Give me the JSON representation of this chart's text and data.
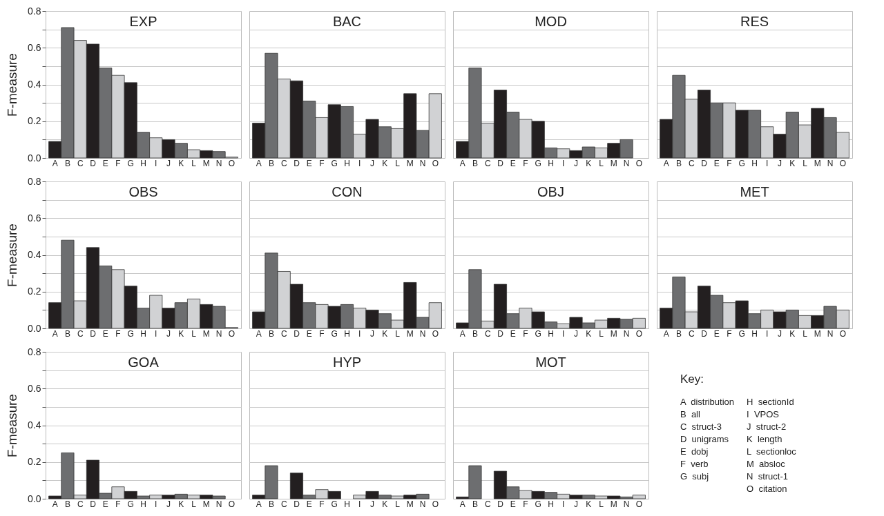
{
  "chart_data": [
    {
      "type": "bar",
      "title": "EXP",
      "ylabel": "F-measure",
      "categories": [
        "A",
        "B",
        "C",
        "D",
        "E",
        "F",
        "G",
        "H",
        "I",
        "J",
        "K",
        "L",
        "M",
        "N",
        "O"
      ],
      "values": [
        0.09,
        0.71,
        0.64,
        0.62,
        0.49,
        0.45,
        0.41,
        0.14,
        0.11,
        0.1,
        0.08,
        0.045,
        0.04,
        0.035,
        0.005
      ],
      "colors": [
        "#231f20",
        "#6d6e70",
        "#d1d2d4",
        "#231f20",
        "#6d6e70",
        "#d1d2d4",
        "#231f20",
        "#6d6e70",
        "#d1d2d4",
        "#231f20",
        "#6d6e70",
        "#d1d2d4",
        "#231f20",
        "#6d6e70",
        "#d1d2d4"
      ],
      "ylim": [
        0,
        0.8
      ],
      "yticks": [
        {
          "value": 0,
          "label": "0.0"
        },
        {
          "value": 0.1,
          "label": null
        },
        {
          "value": 0.2,
          "label": "0.2"
        },
        {
          "value": 0.3,
          "label": null
        },
        {
          "value": 0.4,
          "label": "0.4"
        },
        {
          "value": 0.5,
          "label": null
        },
        {
          "value": 0.6,
          "label": "0.6"
        },
        {
          "value": 0.7,
          "label": null
        },
        {
          "value": 0.8,
          "label": "0.8"
        }
      ],
      "grid": "y"
    },
    {
      "type": "bar",
      "title": "BAC",
      "categories": [
        "A",
        "B",
        "C",
        "D",
        "E",
        "F",
        "G",
        "H",
        "I",
        "J",
        "K",
        "L",
        "M",
        "N",
        "O"
      ],
      "values": [
        0.19,
        0.57,
        0.43,
        0.42,
        0.31,
        0.22,
        0.29,
        0.28,
        0.13,
        0.21,
        0.17,
        0.16,
        0.35,
        0.15,
        0.35
      ],
      "colors": [
        "#231f20",
        "#6d6e70",
        "#d1d2d4",
        "#231f20",
        "#6d6e70",
        "#d1d2d4",
        "#231f20",
        "#6d6e70",
        "#d1d2d4",
        "#231f20",
        "#6d6e70",
        "#d1d2d4",
        "#231f20",
        "#6d6e70",
        "#d1d2d4"
      ],
      "ylim": [
        0,
        0.8
      ],
      "yticks": [
        {
          "value": 0.1,
          "label": null
        },
        {
          "value": 0.2,
          "label": null
        },
        {
          "value": 0.3,
          "label": null
        },
        {
          "value": 0.4,
          "label": null
        },
        {
          "value": 0.5,
          "label": null
        },
        {
          "value": 0.6,
          "label": null
        },
        {
          "value": 0.7,
          "label": null
        }
      ],
      "grid": "y",
      "tick_labels": "x"
    },
    {
      "type": "bar",
      "title": "MOD",
      "categories": [
        "A",
        "B",
        "C",
        "D",
        "E",
        "F",
        "G",
        "H",
        "I",
        "J",
        "K",
        "L",
        "M",
        "N",
        "O"
      ],
      "values": [
        0.09,
        0.49,
        0.19,
        0.37,
        0.25,
        0.21,
        0.2,
        0.055,
        0.05,
        0.04,
        0.06,
        0.055,
        0.08,
        0.1,
        null
      ],
      "colors": [
        "#231f20",
        "#6d6e70",
        "#d1d2d4",
        "#231f20",
        "#6d6e70",
        "#d1d2d4",
        "#231f20",
        "#6d6e70",
        "#d1d2d4",
        "#231f20",
        "#6d6e70",
        "#d1d2d4",
        "#231f20",
        "#6d6e70",
        "#d1d2d4"
      ],
      "ylim": [
        0,
        0.8
      ],
      "yticks": [
        {
          "value": 0.1,
          "label": null
        },
        {
          "value": 0.2,
          "label": null
        },
        {
          "value": 0.3,
          "label": null
        },
        {
          "value": 0.4,
          "label": null
        },
        {
          "value": 0.5,
          "label": null
        },
        {
          "value": 0.6,
          "label": null
        },
        {
          "value": 0.7,
          "label": null
        }
      ],
      "grid": "y",
      "tick_labels": "x"
    },
    {
      "type": "bar",
      "title": "RES",
      "categories": [
        "A",
        "B",
        "C",
        "D",
        "E",
        "F",
        "G",
        "H",
        "I",
        "J",
        "K",
        "L",
        "M",
        "N",
        "O"
      ],
      "values": [
        0.21,
        0.45,
        0.32,
        0.37,
        0.3,
        0.3,
        0.26,
        0.26,
        0.17,
        0.13,
        0.25,
        0.18,
        0.27,
        0.22,
        0.14
      ],
      "colors": [
        "#231f20",
        "#6d6e70",
        "#d1d2d4",
        "#231f20",
        "#6d6e70",
        "#d1d2d4",
        "#231f20",
        "#6d6e70",
        "#d1d2d4",
        "#231f20",
        "#6d6e70",
        "#d1d2d4",
        "#231f20",
        "#6d6e70",
        "#d1d2d4"
      ],
      "ylim": [
        0,
        0.8
      ],
      "yticks": [
        {
          "value": 0.1,
          "label": null
        },
        {
          "value": 0.2,
          "label": null
        },
        {
          "value": 0.3,
          "label": null
        },
        {
          "value": 0.4,
          "label": null
        },
        {
          "value": 0.5,
          "label": null
        },
        {
          "value": 0.6,
          "label": null
        },
        {
          "value": 0.7,
          "label": null
        }
      ],
      "grid": "y",
      "tick_labels": "x"
    },
    {
      "type": "bar",
      "title": "OBS",
      "ylabel": "F-measure",
      "categories": [
        "A",
        "B",
        "C",
        "D",
        "E",
        "F",
        "G",
        "H",
        "I",
        "J",
        "K",
        "L",
        "M",
        "N",
        "O"
      ],
      "values": [
        0.14,
        0.48,
        0.15,
        0.44,
        0.34,
        0.32,
        0.23,
        0.11,
        0.18,
        0.11,
        0.14,
        0.16,
        0.13,
        0.12,
        0.005
      ],
      "colors": [
        "#231f20",
        "#6d6e70",
        "#d1d2d4",
        "#231f20",
        "#6d6e70",
        "#d1d2d4",
        "#231f20",
        "#6d6e70",
        "#d1d2d4",
        "#231f20",
        "#6d6e70",
        "#d1d2d4",
        "#231f20",
        "#6d6e70",
        "#d1d2d4"
      ],
      "ylim": [
        0,
        0.8
      ],
      "yticks": [
        {
          "value": 0,
          "label": "0.0"
        },
        {
          "value": 0.1,
          "label": null
        },
        {
          "value": 0.2,
          "label": "0.2"
        },
        {
          "value": 0.3,
          "label": null
        },
        {
          "value": 0.4,
          "label": "0.4"
        },
        {
          "value": 0.5,
          "label": null
        },
        {
          "value": 0.6,
          "label": "0.6"
        },
        {
          "value": 0.7,
          "label": null
        },
        {
          "value": 0.8,
          "label": "0.8"
        }
      ],
      "grid": "y"
    },
    {
      "type": "bar",
      "title": "CON",
      "categories": [
        "A",
        "B",
        "C",
        "D",
        "E",
        "F",
        "G",
        "H",
        "I",
        "J",
        "K",
        "L",
        "M",
        "N",
        "O"
      ],
      "values": [
        0.09,
        0.41,
        0.31,
        0.24,
        0.14,
        0.13,
        0.12,
        0.13,
        0.11,
        0.1,
        0.08,
        0.045,
        0.25,
        0.06,
        0.14
      ],
      "colors": [
        "#231f20",
        "#6d6e70",
        "#d1d2d4",
        "#231f20",
        "#6d6e70",
        "#d1d2d4",
        "#231f20",
        "#6d6e70",
        "#d1d2d4",
        "#231f20",
        "#6d6e70",
        "#d1d2d4",
        "#231f20",
        "#6d6e70",
        "#d1d2d4"
      ],
      "ylim": [
        0,
        0.8
      ],
      "yticks": [
        {
          "value": 0.1,
          "label": null
        },
        {
          "value": 0.2,
          "label": null
        },
        {
          "value": 0.3,
          "label": null
        },
        {
          "value": 0.4,
          "label": null
        },
        {
          "value": 0.5,
          "label": null
        },
        {
          "value": 0.6,
          "label": null
        },
        {
          "value": 0.7,
          "label": null
        }
      ],
      "grid": "y",
      "tick_labels": "x"
    },
    {
      "type": "bar",
      "title": "OBJ",
      "categories": [
        "A",
        "B",
        "C",
        "D",
        "E",
        "F",
        "G",
        "H",
        "I",
        "J",
        "K",
        "L",
        "M",
        "N",
        "O"
      ],
      "values": [
        0.03,
        0.32,
        0.04,
        0.24,
        0.08,
        0.11,
        0.09,
        0.035,
        0.025,
        0.06,
        0.03,
        0.045,
        0.055,
        0.05,
        0.055
      ],
      "colors": [
        "#231f20",
        "#6d6e70",
        "#d1d2d4",
        "#231f20",
        "#6d6e70",
        "#d1d2d4",
        "#231f20",
        "#6d6e70",
        "#d1d2d4",
        "#231f20",
        "#6d6e70",
        "#d1d2d4",
        "#231f20",
        "#6d6e70",
        "#d1d2d4"
      ],
      "ylim": [
        0,
        0.8
      ],
      "yticks": [
        {
          "value": 0.1,
          "label": null
        },
        {
          "value": 0.2,
          "label": null
        },
        {
          "value": 0.3,
          "label": null
        },
        {
          "value": 0.4,
          "label": null
        },
        {
          "value": 0.5,
          "label": null
        },
        {
          "value": 0.6,
          "label": null
        },
        {
          "value": 0.7,
          "label": null
        }
      ],
      "grid": "y",
      "tick_labels": "x"
    },
    {
      "type": "bar",
      "title": "MET",
      "categories": [
        "A",
        "B",
        "C",
        "D",
        "E",
        "F",
        "G",
        "H",
        "I",
        "J",
        "K",
        "L",
        "M",
        "N",
        "O"
      ],
      "values": [
        0.11,
        0.28,
        0.09,
        0.23,
        0.18,
        0.14,
        0.15,
        0.08,
        0.1,
        0.09,
        0.1,
        0.07,
        0.07,
        0.12,
        0.1
      ],
      "colors": [
        "#231f20",
        "#6d6e70",
        "#d1d2d4",
        "#231f20",
        "#6d6e70",
        "#d1d2d4",
        "#231f20",
        "#6d6e70",
        "#d1d2d4",
        "#231f20",
        "#6d6e70",
        "#d1d2d4",
        "#231f20",
        "#6d6e70",
        "#d1d2d4"
      ],
      "ylim": [
        0,
        0.8
      ],
      "yticks": [
        {
          "value": 0.1,
          "label": null
        },
        {
          "value": 0.2,
          "label": null
        },
        {
          "value": 0.3,
          "label": null
        },
        {
          "value": 0.4,
          "label": null
        },
        {
          "value": 0.5,
          "label": null
        },
        {
          "value": 0.6,
          "label": null
        },
        {
          "value": 0.7,
          "label": null
        }
      ],
      "grid": "y",
      "tick_labels": "x"
    },
    {
      "type": "bar",
      "title": "GOA",
      "ylabel": "F-measure",
      "categories": [
        "A",
        "B",
        "C",
        "D",
        "E",
        "F",
        "G",
        "H",
        "I",
        "J",
        "K",
        "L",
        "M",
        "N",
        "O"
      ],
      "values": [
        0.015,
        0.25,
        0.02,
        0.21,
        0.03,
        0.065,
        0.04,
        0.015,
        0.02,
        0.02,
        0.025,
        0.02,
        0.02,
        0.015,
        null
      ],
      "colors": [
        "#231f20",
        "#6d6e70",
        "#d1d2d4",
        "#231f20",
        "#6d6e70",
        "#d1d2d4",
        "#231f20",
        "#6d6e70",
        "#d1d2d4",
        "#231f20",
        "#6d6e70",
        "#d1d2d4",
        "#231f20",
        "#6d6e70",
        "#d1d2d4"
      ],
      "ylim": [
        0,
        0.8
      ],
      "yticks": [
        {
          "value": 0,
          "label": "0.0"
        },
        {
          "value": 0.1,
          "label": null
        },
        {
          "value": 0.2,
          "label": "0.2"
        },
        {
          "value": 0.3,
          "label": null
        },
        {
          "value": 0.4,
          "label": "0.4"
        },
        {
          "value": 0.5,
          "label": null
        },
        {
          "value": 0.6,
          "label": "0.6"
        },
        {
          "value": 0.7,
          "label": null
        },
        {
          "value": 0.8,
          "label": "0.8"
        }
      ],
      "grid": "y"
    },
    {
      "type": "bar",
      "title": "HYP",
      "categories": [
        "A",
        "B",
        "C",
        "D",
        "E",
        "F",
        "G",
        "H",
        "I",
        "J",
        "K",
        "L",
        "M",
        "N",
        "O"
      ],
      "values": [
        0.02,
        0.18,
        null,
        0.14,
        0.02,
        0.05,
        0.04,
        null,
        0.02,
        0.04,
        0.02,
        0.015,
        0.02,
        0.025,
        null
      ],
      "colors": [
        "#231f20",
        "#6d6e70",
        "#d1d2d4",
        "#231f20",
        "#6d6e70",
        "#d1d2d4",
        "#231f20",
        "#6d6e70",
        "#d1d2d4",
        "#231f20",
        "#6d6e70",
        "#d1d2d4",
        "#231f20",
        "#6d6e70",
        "#d1d2d4"
      ],
      "ylim": [
        0,
        0.8
      ],
      "yticks": [
        {
          "value": 0.1,
          "label": null
        },
        {
          "value": 0.2,
          "label": null
        },
        {
          "value": 0.3,
          "label": null
        },
        {
          "value": 0.4,
          "label": null
        },
        {
          "value": 0.5,
          "label": null
        },
        {
          "value": 0.6,
          "label": null
        },
        {
          "value": 0.7,
          "label": null
        }
      ],
      "grid": "y",
      "tick_labels": "x"
    },
    {
      "type": "bar",
      "title": "MOT",
      "categories": [
        "A",
        "B",
        "C",
        "D",
        "E",
        "F",
        "G",
        "H",
        "I",
        "J",
        "K",
        "L",
        "M",
        "N",
        "O"
      ],
      "values": [
        0.01,
        0.18,
        null,
        0.15,
        0.065,
        0.045,
        0.04,
        0.035,
        0.025,
        0.02,
        0.02,
        0.015,
        0.015,
        0.01,
        0.02
      ],
      "colors": [
        "#231f20",
        "#6d6e70",
        "#d1d2d4",
        "#231f20",
        "#6d6e70",
        "#d1d2d4",
        "#231f20",
        "#6d6e70",
        "#d1d2d4",
        "#231f20",
        "#6d6e70",
        "#d1d2d4",
        "#231f20",
        "#6d6e70",
        "#d1d2d4"
      ],
      "ylim": [
        0,
        0.8
      ],
      "yticks": [
        {
          "value": 0.1,
          "label": null
        },
        {
          "value": 0.2,
          "label": null
        },
        {
          "value": 0.3,
          "label": null
        },
        {
          "value": 0.4,
          "label": null
        },
        {
          "value": 0.5,
          "label": null
        },
        {
          "value": 0.6,
          "label": null
        },
        {
          "value": 0.7,
          "label": null
        }
      ],
      "grid": "y",
      "tick_labels": "x"
    },
    {
      "type": "other",
      "title": "Key:",
      "annotations": [
        "A  distribution",
        "B  all",
        "C  struct-3",
        "D  unigrams",
        "E  dobj",
        "F  verb",
        "G  subj",
        "H  sectionId",
        "I  VPOS",
        "J  struct-2",
        "K  length",
        "L  sectionloc",
        "M  absloc",
        "N  struct-1",
        "O  citation"
      ]
    }
  ]
}
